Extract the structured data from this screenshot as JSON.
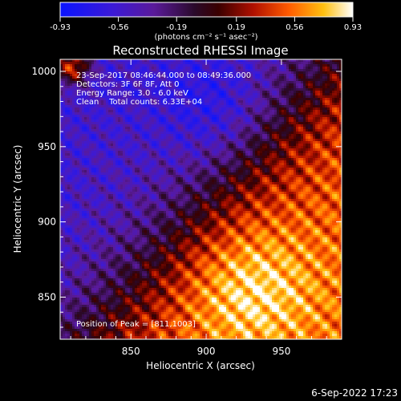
{
  "colorbar": {
    "ticks": [
      "-0.93",
      "-0.56",
      "-0.19",
      "0.19",
      "0.56",
      "0.93"
    ],
    "units": "(photons cm⁻² s⁻¹ asec⁻²)",
    "min": -0.93,
    "max": 0.93
  },
  "chart_data": {
    "type": "heatmap",
    "title": "Reconstructed RHESSI Image",
    "xlabel": "Heliocentric X (arcsec)",
    "ylabel": "Heliocentric Y (arcsec)",
    "xlim": [
      803,
      990
    ],
    "ylim": [
      822,
      1008
    ],
    "xticks": [
      850,
      900,
      950
    ],
    "yticks": [
      850,
      900,
      950,
      1000
    ],
    "annotations": [
      "23-Sep-2017 08:46:44.000 to 08:49:36.000",
      "Detectors: 3F 6F 8F, Att 0",
      "Energy Range: 3.0 - 6.0 keV",
      "Clean    Total counts: 6.33E+04"
    ],
    "peak_label": "Position of Peak = [811,1003]",
    "peak": [
      811,
      1003
    ],
    "colormap": "blue-purple-black-red-yellow-white",
    "colorscale_range": [
      -0.93,
      0.93
    ]
  },
  "footer": {
    "date": "6-Sep-2022 17:23"
  }
}
